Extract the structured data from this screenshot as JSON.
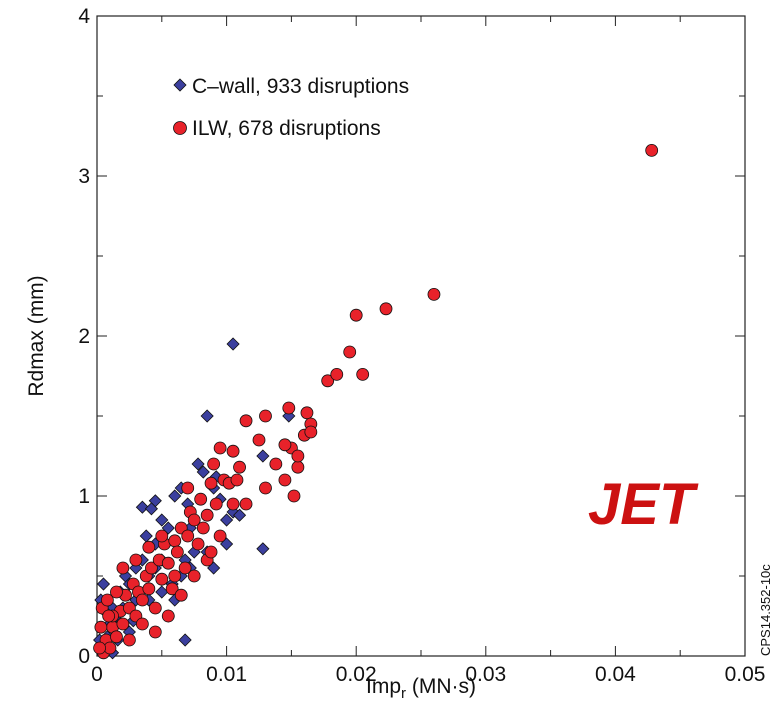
{
  "chart_data": {
    "type": "scatter",
    "xlabel": "Imp",
    "xlabel_subscript": "r",
    "xlabel_unit": " (MN·s)",
    "ylabel": "Rdmax (mm)",
    "xlim": [
      0,
      0.05
    ],
    "ylim": [
      0,
      4
    ],
    "x_ticks": [
      "0",
      "0.01",
      "0.02",
      "0.03",
      "0.04",
      "0.05"
    ],
    "y_ticks": [
      "0",
      "1",
      "2",
      "3",
      "4"
    ],
    "legend_position": "top-left",
    "annotation": "JET",
    "side_label": "CPS14.352-10c",
    "series": [
      {
        "name": "C–wall, 933 disruptions",
        "marker": "diamond",
        "color": "#3b3f9e",
        "points": [
          [
            0.0005,
            0.05
          ],
          [
            0.0008,
            0.12
          ],
          [
            0.001,
            0.2
          ],
          [
            0.0012,
            0.3
          ],
          [
            0.0003,
            0.35
          ],
          [
            0.0005,
            0.45
          ],
          [
            0.0015,
            0.25
          ],
          [
            0.002,
            0.3
          ],
          [
            0.0018,
            0.4
          ],
          [
            0.0022,
            0.5
          ],
          [
            0.0025,
            0.45
          ],
          [
            0.003,
            0.35
          ],
          [
            0.003,
            0.55
          ],
          [
            0.0035,
            0.6
          ],
          [
            0.004,
            0.5
          ],
          [
            0.0045,
            0.55
          ],
          [
            0.005,
            0.6
          ],
          [
            0.0038,
            0.75
          ],
          [
            0.0035,
            0.93
          ],
          [
            0.0045,
            0.97
          ],
          [
            0.005,
            0.85
          ],
          [
            0.0055,
            0.8
          ],
          [
            0.006,
            1.0
          ],
          [
            0.0065,
            1.05
          ],
          [
            0.007,
            0.95
          ],
          [
            0.0072,
            0.8
          ],
          [
            0.0078,
            1.2
          ],
          [
            0.0082,
            1.15
          ],
          [
            0.0085,
            1.5
          ],
          [
            0.009,
            1.05
          ],
          [
            0.0092,
            1.12
          ],
          [
            0.0095,
            0.98
          ],
          [
            0.01,
            0.85
          ],
          [
            0.01,
            0.7
          ],
          [
            0.0105,
            1.95
          ],
          [
            0.0105,
            0.9
          ],
          [
            0.011,
            0.88
          ],
          [
            0.0085,
            0.65
          ],
          [
            0.009,
            0.55
          ],
          [
            0.0075,
            0.65
          ],
          [
            0.0068,
            0.6
          ],
          [
            0.0065,
            0.5
          ],
          [
            0.006,
            0.35
          ],
          [
            0.0068,
            0.1
          ],
          [
            0.0055,
            0.25
          ],
          [
            0.005,
            0.4
          ],
          [
            0.004,
            0.35
          ],
          [
            0.0045,
            0.7
          ],
          [
            0.0128,
            1.25
          ],
          [
            0.0128,
            0.67
          ],
          [
            0.0148,
            1.5
          ],
          [
            0.0042,
            0.92
          ],
          [
            0.0058,
            0.45
          ],
          [
            0.0072,
            0.55
          ],
          [
            0.0025,
            0.15
          ],
          [
            0.0012,
            0.02
          ],
          [
            0.0002,
            0.1
          ],
          [
            0.0006,
            0.28
          ],
          [
            0.0016,
            0.1
          ],
          [
            0.0028,
            0.22
          ]
        ]
      },
      {
        "name": "ILW, 678 disruptions",
        "marker": "circle",
        "color": "#e8222a",
        "points": [
          [
            0.0005,
            0.02
          ],
          [
            0.0007,
            0.1
          ],
          [
            0.001,
            0.05
          ],
          [
            0.0012,
            0.18
          ],
          [
            0.0015,
            0.12
          ],
          [
            0.0004,
            0.3
          ],
          [
            0.0008,
            0.35
          ],
          [
            0.0018,
            0.28
          ],
          [
            0.002,
            0.2
          ],
          [
            0.0022,
            0.38
          ],
          [
            0.0025,
            0.3
          ],
          [
            0.0028,
            0.45
          ],
          [
            0.003,
            0.25
          ],
          [
            0.0032,
            0.4
          ],
          [
            0.0035,
            0.35
          ],
          [
            0.0038,
            0.5
          ],
          [
            0.004,
            0.42
          ],
          [
            0.0042,
            0.55
          ],
          [
            0.0045,
            0.3
          ],
          [
            0.0048,
            0.6
          ],
          [
            0.005,
            0.48
          ],
          [
            0.0052,
            0.7
          ],
          [
            0.0055,
            0.58
          ],
          [
            0.0058,
            0.42
          ],
          [
            0.006,
            0.72
          ],
          [
            0.0062,
            0.65
          ],
          [
            0.0065,
            0.8
          ],
          [
            0.0068,
            0.55
          ],
          [
            0.007,
            0.75
          ],
          [
            0.0072,
            0.9
          ],
          [
            0.0075,
            0.85
          ],
          [
            0.0078,
            0.7
          ],
          [
            0.008,
            0.98
          ],
          [
            0.0082,
            0.8
          ],
          [
            0.0085,
            0.88
          ],
          [
            0.0088,
            1.08
          ],
          [
            0.009,
            1.2
          ],
          [
            0.0092,
            0.95
          ],
          [
            0.0095,
            1.3
          ],
          [
            0.0098,
            1.1
          ],
          [
            0.0102,
            1.08
          ],
          [
            0.0105,
            1.28
          ],
          [
            0.0108,
            1.1
          ],
          [
            0.011,
            1.18
          ],
          [
            0.0115,
            1.47
          ],
          [
            0.0125,
            1.35
          ],
          [
            0.013,
            1.05
          ],
          [
            0.0138,
            1.2
          ],
          [
            0.0145,
            1.1
          ],
          [
            0.0148,
            1.55
          ],
          [
            0.015,
            1.3
          ],
          [
            0.0152,
            1.0
          ],
          [
            0.0155,
            1.18
          ],
          [
            0.016,
            1.38
          ],
          [
            0.0162,
            1.52
          ],
          [
            0.0165,
            1.45
          ],
          [
            0.0165,
            1.4
          ],
          [
            0.0178,
            1.72
          ],
          [
            0.0185,
            1.76
          ],
          [
            0.0195,
            1.9
          ],
          [
            0.02,
            2.13
          ],
          [
            0.0205,
            1.76
          ],
          [
            0.0223,
            2.17
          ],
          [
            0.026,
            2.26
          ],
          [
            0.0428,
            3.16
          ],
          [
            0.0145,
            1.32
          ],
          [
            0.0105,
            0.95
          ],
          [
            0.0085,
            0.6
          ],
          [
            0.0075,
            0.5
          ],
          [
            0.0065,
            0.38
          ],
          [
            0.006,
            0.5
          ],
          [
            0.0055,
            0.25
          ],
          [
            0.0045,
            0.15
          ],
          [
            0.0035,
            0.2
          ],
          [
            0.0025,
            0.1
          ],
          [
            0.0015,
            0.4
          ],
          [
            0.002,
            0.55
          ],
          [
            0.0012,
            0.25
          ],
          [
            0.003,
            0.6
          ],
          [
            0.004,
            0.68
          ],
          [
            0.005,
            0.75
          ],
          [
            0.007,
            1.05
          ],
          [
            0.0088,
            0.65
          ],
          [
            0.0095,
            0.75
          ],
          [
            0.0115,
            0.95
          ],
          [
            0.013,
            1.5
          ],
          [
            0.0155,
            1.25
          ],
          [
            0.0002,
            0.05
          ],
          [
            0.0003,
            0.18
          ],
          [
            0.0009,
            0.25
          ]
        ]
      }
    ]
  }
}
